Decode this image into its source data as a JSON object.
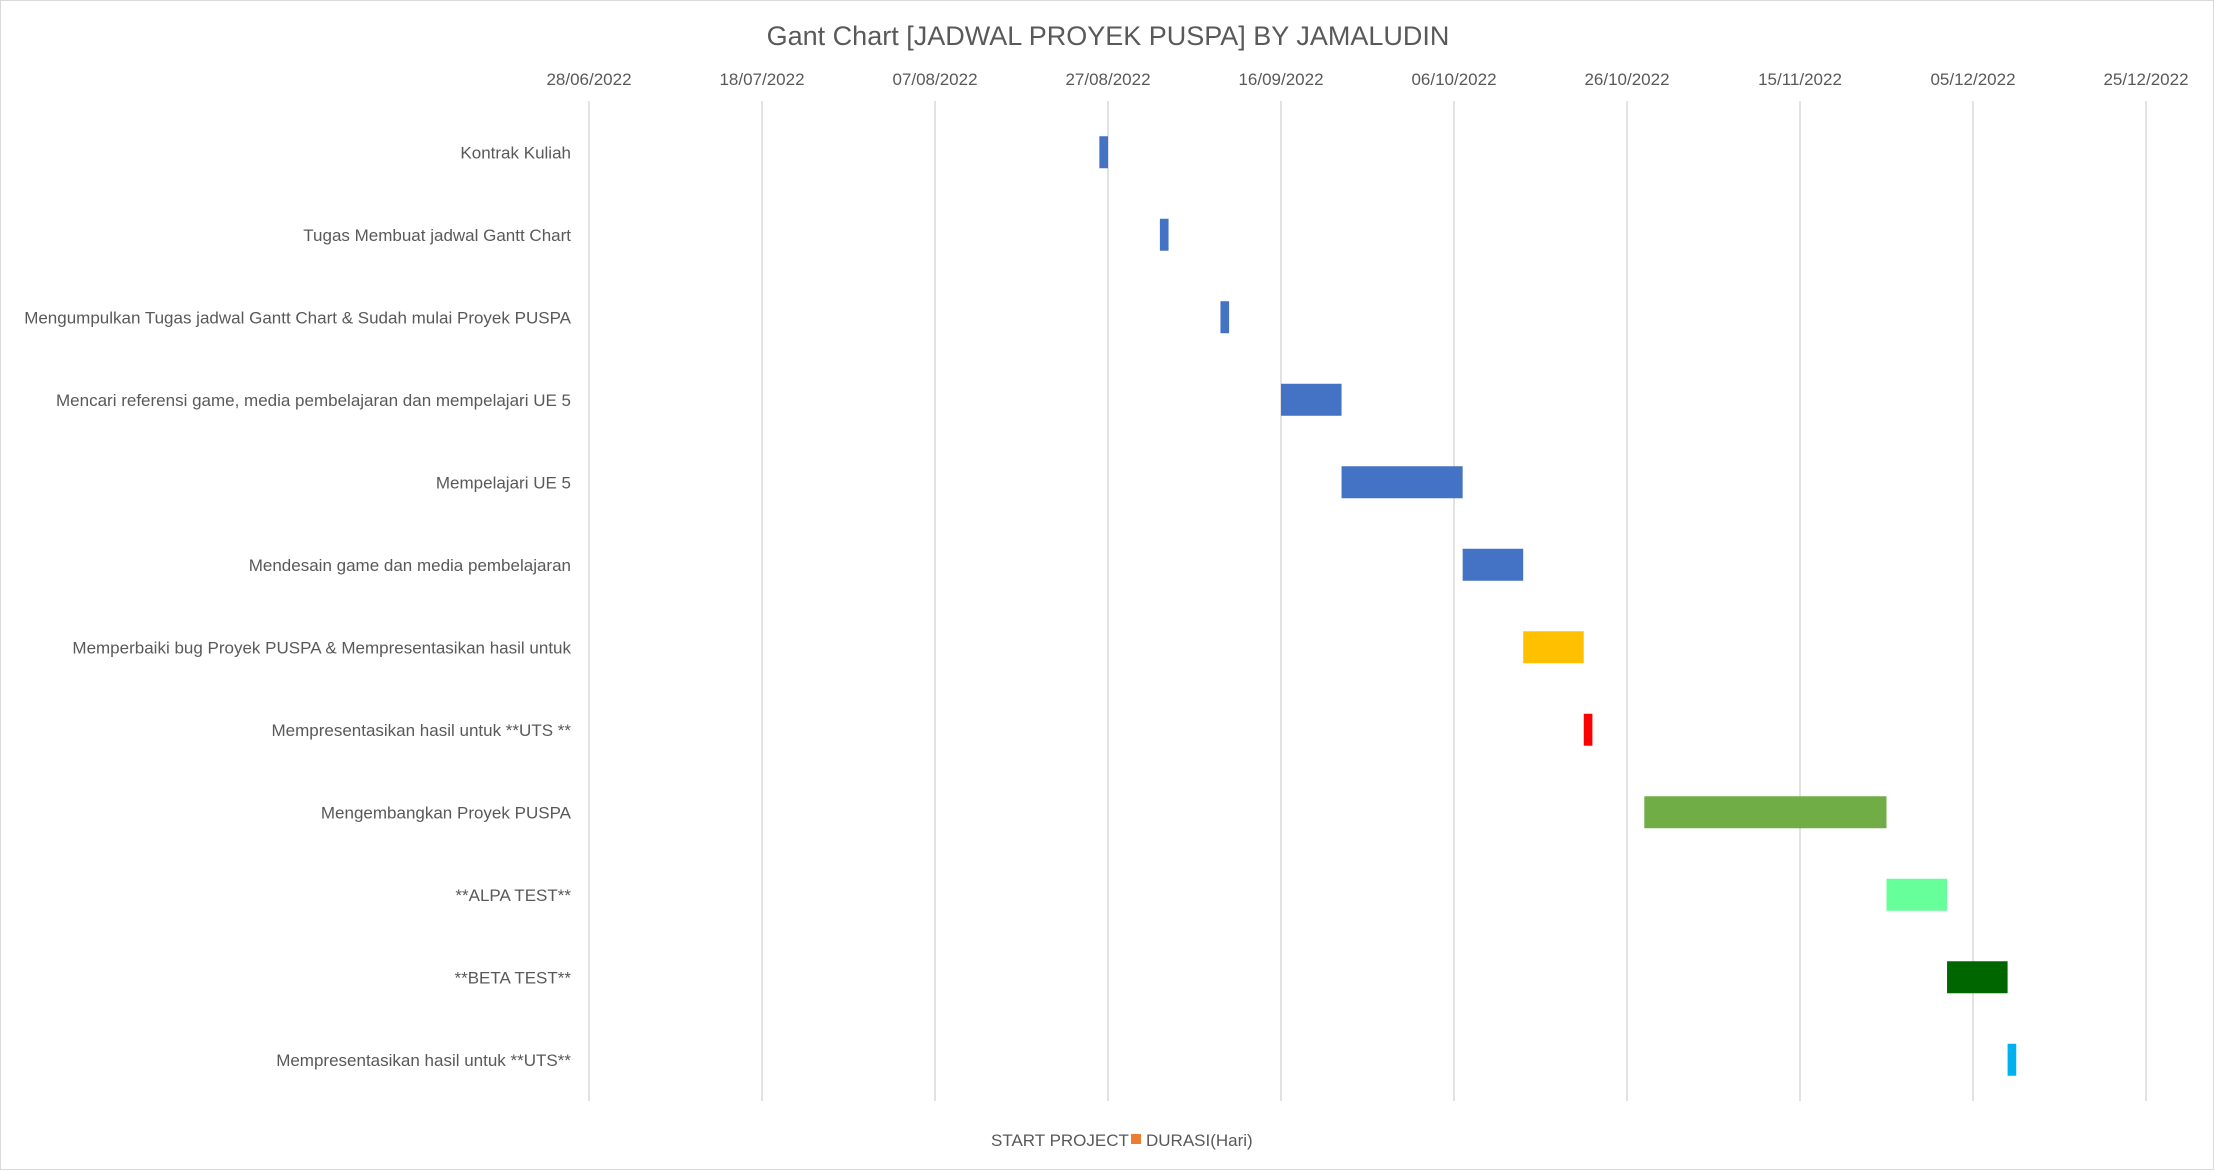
{
  "chart_data": {
    "type": "bar",
    "orientation": "horizontal",
    "stacked": true,
    "title": "Gant Chart [JADWAL PROYEK PUSPA] BY JAMALUDIN",
    "x_axis": {
      "position": "top",
      "ticks": [
        "28/06/2022",
        "18/07/2022",
        "07/08/2022",
        "27/08/2022",
        "16/09/2022",
        "06/10/2022",
        "26/10/2022",
        "15/11/2022",
        "05/12/2022",
        "25/12/2022"
      ],
      "range": [
        "2022-06-28",
        "2022-12-25"
      ],
      "gridlines": true
    },
    "categories": [
      "Kontrak Kuliah",
      "Tugas Membuat jadwal Gantt Chart",
      "Mengumpulkan Tugas jadwal Gantt Chart & Sudah mulai Proyek PUSPA",
      "Mencari referensi game, media pembelajaran dan mempelajari UE 5",
      "Mempelajari UE 5",
      "Mendesain game dan media pembelajaran",
      "Memperbaiki bug Proyek PUSPA  & Mempresentasikan hasil untuk",
      "Mempresentasikan hasil untuk  **UTS **",
      "Mengembangkan Proyek PUSPA",
      "**ALPA TEST**",
      "**BETA TEST**",
      "Mempresentasikan hasil untuk  **UTS**"
    ],
    "series": [
      {
        "name": "START PROJECT",
        "values": [
          "2022-08-26",
          "2022-09-02",
          "2022-09-09",
          "2022-09-16",
          "2022-09-23",
          "2022-10-07",
          "2022-10-14",
          "2022-10-21",
          "2022-10-28",
          "2022-11-25",
          "2022-12-02",
          "2022-12-09"
        ],
        "color": "transparent"
      },
      {
        "name": "DURASI(Hari)",
        "values": [
          1,
          1,
          1,
          7,
          14,
          7,
          7,
          1,
          28,
          7,
          7,
          1
        ],
        "legend_color": "#ED7D31",
        "bar_colors": [
          "#4472C4",
          "#4472C4",
          "#4472C4",
          "#4472C4",
          "#4472C4",
          "#4472C4",
          "#FFC000",
          "#FF0000",
          "#70AD47",
          "#66FF99",
          "#006600",
          "#00B0F0"
        ]
      }
    ],
    "legend_position": "bottom"
  }
}
